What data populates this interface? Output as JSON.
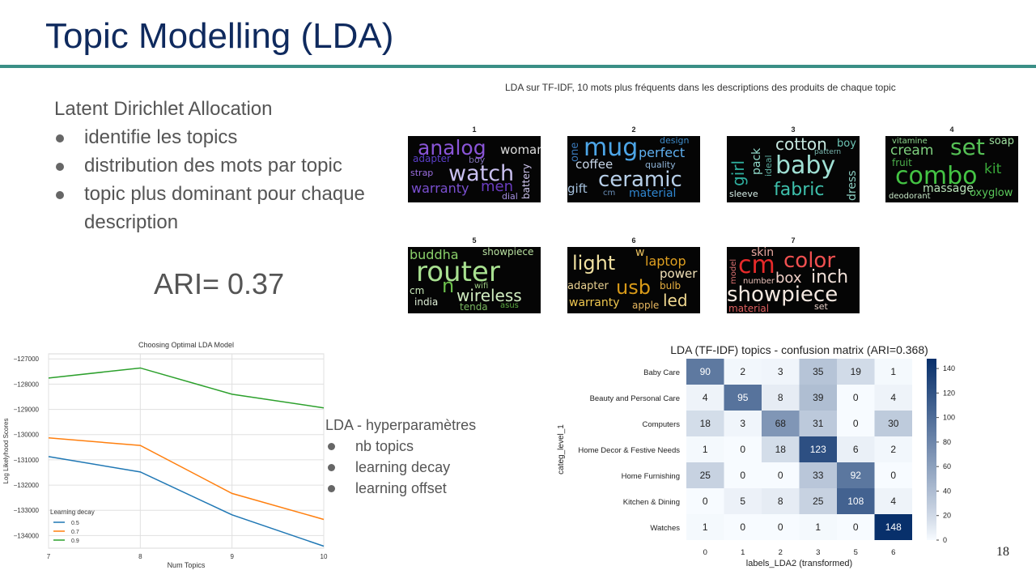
{
  "slide": {
    "title": "Topic Modelling (LDA)",
    "page_number": "18"
  },
  "lda_intro": {
    "heading": "Latent Dirichlet Allocation",
    "bullets": [
      "identifie les topics",
      "distribution des mots par topic",
      "topic plus dominant pour chaque description"
    ],
    "ari": "ARI= 0.37"
  },
  "hyperparams": {
    "heading": "LDA - hyperparamètres",
    "bullets": [
      "nb topics",
      "learning decay",
      "learning offset"
    ]
  },
  "wordclouds": {
    "caption": "LDA sur TF-IDF, 10 mots plus fréquents dans les descriptions des produits de chaque topic",
    "topics": [
      {
        "label": "1",
        "words": [
          "analog",
          "woman",
          "adapter",
          "boy",
          "watch",
          "strap",
          "battery",
          "warranty",
          "men",
          "dial"
        ]
      },
      {
        "label": "2",
        "words": [
          "design",
          "mug",
          "perfect",
          "one",
          "coffee",
          "quality",
          "ceramic",
          "gift",
          "cm",
          "material"
        ]
      },
      {
        "label": "3",
        "words": [
          "cotton",
          "boy",
          "girl",
          "pack",
          "pattern",
          "baby",
          "ideal",
          "dress",
          "sleeve",
          "fabric"
        ]
      },
      {
        "label": "4",
        "words": [
          "vitamine",
          "soap",
          "cream",
          "set",
          "fruit",
          "combo",
          "kit",
          "massage",
          "deodorant",
          "oxyglow"
        ]
      },
      {
        "label": "5",
        "words": [
          "buddha",
          "showpiece",
          "router",
          "n",
          "cm",
          "wifi",
          "wireless",
          "india",
          "tenda",
          "asus"
        ]
      },
      {
        "label": "6",
        "words": [
          "light",
          "w",
          "laptop",
          "power",
          "adapter",
          "usb",
          "bulb",
          "warranty",
          "apple",
          "led"
        ]
      },
      {
        "label": "7",
        "words": [
          "skin",
          "cm",
          "color",
          "model",
          "number",
          "box",
          "inch",
          "showpiece",
          "material",
          "set"
        ]
      }
    ]
  },
  "chart_data": [
    {
      "type": "line",
      "title": "Choosing Optimal LDA Model",
      "xlabel": "Num Topics",
      "ylabel": "Log Likelyhood Scores",
      "x": [
        7,
        8,
        9,
        10
      ],
      "xlim": [
        7,
        10
      ],
      "ylim": [
        -134500,
        -126800
      ],
      "yticks": [
        -127000,
        -128000,
        -129000,
        -130000,
        -131000,
        -132000,
        -133000,
        -134000
      ],
      "ytick_labels": [
        "−127000",
        "−128000",
        "−129000",
        "−130000",
        "−131000",
        "−132000",
        "−133000",
        "−134000"
      ],
      "grid": true,
      "legend_title": "Learning decay",
      "legend_position": "lower-left",
      "series": [
        {
          "name": "0.5",
          "color": "#1f77b4",
          "values": [
            -130870,
            -131480,
            -133180,
            -134420
          ]
        },
        {
          "name": "0.7",
          "color": "#ff7f0e",
          "values": [
            -130130,
            -130430,
            -132330,
            -133360
          ]
        },
        {
          "name": "0.9",
          "color": "#2ca02c",
          "values": [
            -127760,
            -127360,
            -128400,
            -128940
          ]
        }
      ]
    },
    {
      "type": "heatmap",
      "title": "LDA (TF-IDF) topics - confusion matrix (ARI=0.368)",
      "xlabel": "labels_LDA2 (transformed)",
      "ylabel": "categ_level_1",
      "rows": [
        "Baby Care",
        "Beauty and Personal Care",
        "Computers",
        "Home Decor & Festive Needs",
        "Home Furnishing",
        "Kitchen & Dining",
        "Watches"
      ],
      "columns": [
        "0",
        "1",
        "2",
        "3",
        "5",
        "6"
      ],
      "values": [
        [
          90,
          2,
          3,
          35,
          19,
          1
        ],
        [
          4,
          95,
          8,
          39,
          0,
          4
        ],
        [
          18,
          3,
          68,
          31,
          0,
          30
        ],
        [
          1,
          0,
          18,
          123,
          6,
          2
        ],
        [
          25,
          0,
          0,
          33,
          92,
          0
        ],
        [
          0,
          5,
          8,
          25,
          108,
          4
        ],
        [
          1,
          0,
          0,
          1,
          0,
          148
        ]
      ],
      "colorbar_ticks": [
        "0",
        "20",
        "40",
        "60",
        "80",
        "100",
        "120",
        "140"
      ],
      "vmax": 148
    }
  ]
}
